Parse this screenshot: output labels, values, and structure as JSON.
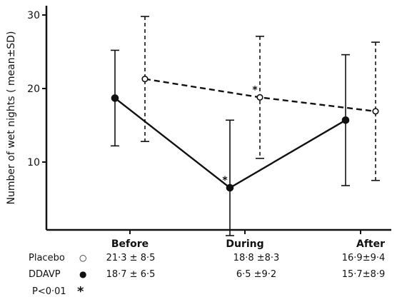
{
  "chart_data": {
    "type": "line",
    "ylabel": "Number of wet nights ( mean±SD)",
    "categories": [
      "Before",
      "During",
      "After"
    ],
    "ylim": [
      0,
      30
    ],
    "yticks": [
      10,
      20,
      30
    ],
    "grid": false,
    "series": [
      {
        "name": "Placebo",
        "marker": "open-circle",
        "line_style": "dashed",
        "color": "#111111",
        "values": [
          21.3,
          18.8,
          16.9
        ],
        "sd": [
          8.5,
          8.3,
          9.4
        ]
      },
      {
        "name": "DDAVP",
        "marker": "filled-circle",
        "line_style": "solid",
        "color": "#111111",
        "values": [
          18.7,
          6.5,
          15.7
        ],
        "sd": [
          6.5,
          9.2,
          8.9
        ]
      }
    ],
    "significance": {
      "label": "P<0·01",
      "symbol": "*",
      "points": [
        {
          "series": "DDAVP",
          "category": "During"
        },
        {
          "series": "Placebo",
          "category": "During"
        }
      ]
    },
    "table": {
      "rows": [
        {
          "label": "Placebo",
          "symbol": "○",
          "cells": [
            "21·3 ± 8·5",
            "18·8 ±8·3",
            "16·9±9·4"
          ]
        },
        {
          "label": "DDAVP",
          "symbol": "●",
          "cells": [
            "18·7 ± 6·5",
            "6·5 ±9·2",
            "15·7±8·9"
          ]
        },
        {
          "label": "P<0·01",
          "symbol": "*",
          "cells": [
            "",
            "",
            ""
          ]
        }
      ]
    }
  }
}
